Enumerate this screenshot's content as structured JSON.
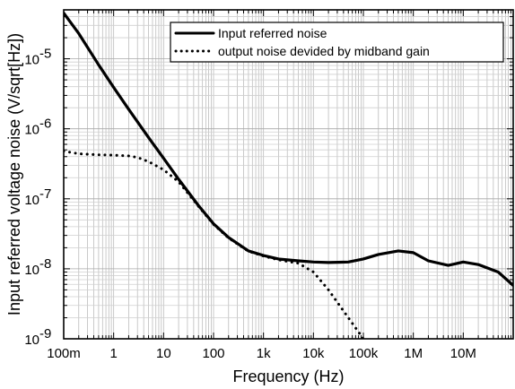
{
  "chart_data": {
    "type": "line",
    "title": "",
    "xlabel": "Frequency (Hz)",
    "ylabel": "Input referred voltage noise (V/sqrt[Hz])",
    "x_scale": "log",
    "y_scale": "log",
    "xlim": [
      0.1,
      100000000
    ],
    "ylim": [
      1e-09,
      5e-05
    ],
    "grid": true,
    "legend_position": "top-right",
    "x_ticks": [
      {
        "value": 0.1,
        "label": "100m"
      },
      {
        "value": 1,
        "label": "1"
      },
      {
        "value": 10,
        "label": "10"
      },
      {
        "value": 100,
        "label": "100"
      },
      {
        "value": 1000,
        "label": "1k"
      },
      {
        "value": 10000,
        "label": "10k"
      },
      {
        "value": 100000,
        "label": "100k"
      },
      {
        "value": 1000000,
        "label": "1M"
      },
      {
        "value": 10000000,
        "label": "10M"
      }
    ],
    "y_ticks": [
      {
        "value": 1e-09,
        "base": "10",
        "exp": "-9"
      },
      {
        "value": 1e-08,
        "base": "10",
        "exp": "-8"
      },
      {
        "value": 1e-07,
        "base": "10",
        "exp": "-7"
      },
      {
        "value": 1e-06,
        "base": "10",
        "exp": "-6"
      },
      {
        "value": 1e-05,
        "base": "10",
        "exp": "-5"
      }
    ],
    "series": [
      {
        "name": "Input referred noise",
        "style": "solid",
        "color": "#000000",
        "x": [
          0.1,
          0.2,
          0.5,
          1,
          2,
          5,
          10,
          20,
          50,
          100,
          200,
          500,
          1000,
          2000,
          5000,
          10000,
          20000,
          50000,
          100000,
          200000,
          500000,
          1000000,
          2000000,
          5000000,
          10000000,
          20000000,
          50000000,
          100000000
        ],
        "y": [
          4.5e-05,
          2.3e-05,
          8.2e-06,
          3.9e-06,
          1.9e-06,
          7.5e-07,
          3.8e-07,
          1.9e-07,
          8e-08,
          4.4e-08,
          2.8e-08,
          1.8e-08,
          1.55e-08,
          1.38e-08,
          1.3e-08,
          1.25e-08,
          1.23e-08,
          1.25e-08,
          1.38e-08,
          1.6e-08,
          1.8e-08,
          1.7e-08,
          1.3e-08,
          1.12e-08,
          1.25e-08,
          1.15e-08,
          9e-09,
          5.8e-09
        ]
      },
      {
        "name": "output noise devided by midband gain",
        "style": "dotted",
        "color": "#000000",
        "x": [
          0.1,
          0.2,
          0.5,
          1,
          2,
          3,
          5,
          10,
          20,
          50,
          100,
          200,
          500,
          1000,
          2000,
          5000,
          10000,
          20000,
          50000,
          100000
        ],
        "y": [
          4.8e-07,
          4.4e-07,
          4.25e-07,
          4.2e-07,
          4.1e-07,
          3.9e-07,
          3.4e-07,
          2.6e-07,
          1.75e-07,
          7.8e-08,
          4.3e-08,
          2.75e-08,
          1.78e-08,
          1.52e-08,
          1.34e-08,
          1.2e-08,
          9e-09,
          5e-09,
          2e-09,
          1e-09
        ]
      }
    ]
  }
}
